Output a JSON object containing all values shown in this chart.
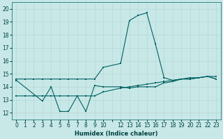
{
  "xlabel": "Humidex (Indice chaleur)",
  "bg_color": "#c8e8e8",
  "line_color": "#006060",
  "grid_color": "#b8d8d8",
  "ylim": [
    11.5,
    20.5
  ],
  "xlim": [
    -0.5,
    23.5
  ],
  "yticks": [
    12,
    13,
    14,
    15,
    16,
    17,
    18,
    19,
    20
  ],
  "xtick_labels": [
    "0",
    "1",
    "2",
    "3",
    "4",
    "5",
    "6",
    "7",
    "8",
    "9",
    "10",
    "",
    "12",
    "13",
    "14",
    "15",
    "16",
    "17",
    "18",
    "19",
    "20",
    "21",
    "22",
    "23"
  ],
  "xtick_positions": [
    0,
    1,
    2,
    3,
    4,
    5,
    6,
    7,
    8,
    9,
    10,
    11,
    12,
    13,
    14,
    15,
    16,
    17,
    18,
    19,
    20,
    21,
    22,
    23
  ],
  "line1_x": [
    0,
    1,
    2,
    3,
    4,
    5,
    6,
    7,
    8,
    9,
    10,
    12,
    13,
    14,
    15,
    16,
    17,
    18,
    19,
    20,
    21,
    22,
    23
  ],
  "line1_y": [
    14.6,
    14.6,
    14.6,
    14.6,
    14.6,
    14.6,
    14.6,
    14.6,
    14.6,
    14.6,
    15.5,
    15.8,
    19.1,
    19.5,
    19.7,
    17.3,
    14.7,
    14.5,
    14.6,
    14.6,
    14.7,
    14.8,
    14.6
  ],
  "line2_x": [
    0,
    1,
    2,
    3,
    4,
    5,
    6,
    7,
    8,
    9,
    10,
    12,
    13,
    14,
    15,
    16,
    17,
    18,
    19,
    20,
    21,
    22,
    23
  ],
  "line2_y": [
    13.3,
    13.3,
    13.3,
    13.3,
    13.3,
    13.3,
    13.3,
    13.3,
    13.3,
    13.3,
    13.6,
    13.9,
    14.0,
    14.1,
    14.2,
    14.3,
    14.4,
    14.5,
    14.6,
    14.7,
    14.7,
    14.8,
    14.8
  ],
  "line3_x": [
    0,
    3,
    4,
    5,
    6,
    7,
    8,
    9,
    10,
    12,
    13,
    14,
    15,
    16,
    17,
    18,
    19,
    20,
    21,
    22,
    23
  ],
  "line3_y": [
    14.5,
    12.9,
    14.0,
    12.1,
    12.1,
    13.3,
    12.1,
    14.1,
    14.0,
    14.0,
    13.9,
    14.0,
    14.0,
    14.0,
    14.3,
    14.4,
    14.6,
    14.6,
    14.7,
    14.8,
    14.6
  ]
}
